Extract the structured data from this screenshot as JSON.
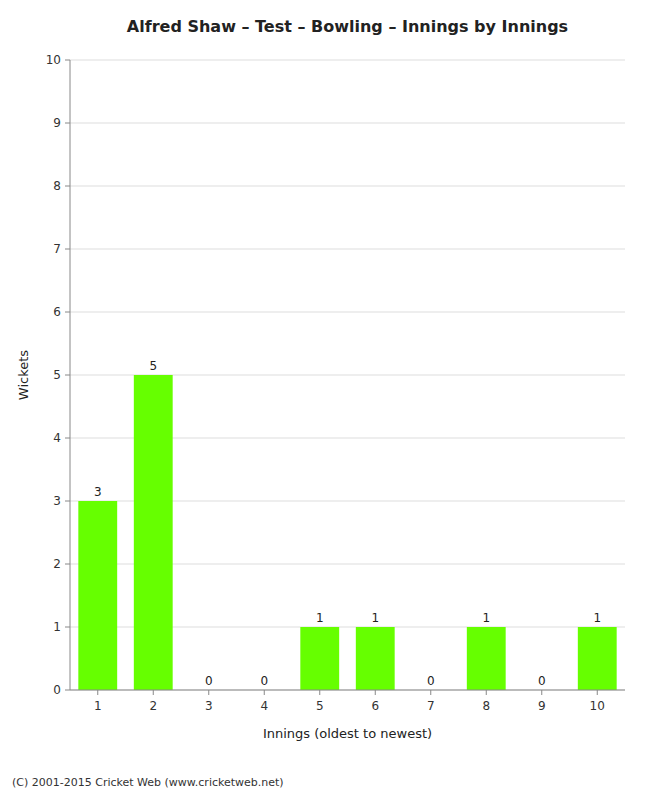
{
  "chart_data": {
    "type": "bar",
    "title": "Alfred Shaw – Test – Bowling – Innings by Innings",
    "x_label": "Innings (oldest to newest)",
    "y_label": "Wickets",
    "categories": [
      "1",
      "2",
      "3",
      "4",
      "5",
      "6",
      "7",
      "8",
      "9",
      "10"
    ],
    "values": [
      3,
      5,
      0,
      0,
      1,
      1,
      0,
      1,
      0,
      1
    ],
    "color": "#66ff00",
    "ylim": [
      0,
      10
    ],
    "yticks": [
      0,
      1,
      2,
      3,
      4,
      5,
      6,
      7,
      8,
      9,
      10
    ],
    "grid": true,
    "data_labels": true,
    "annotations": [
      "(C) 2001-2015 Cricket Web (www.cricketweb.net)"
    ]
  }
}
